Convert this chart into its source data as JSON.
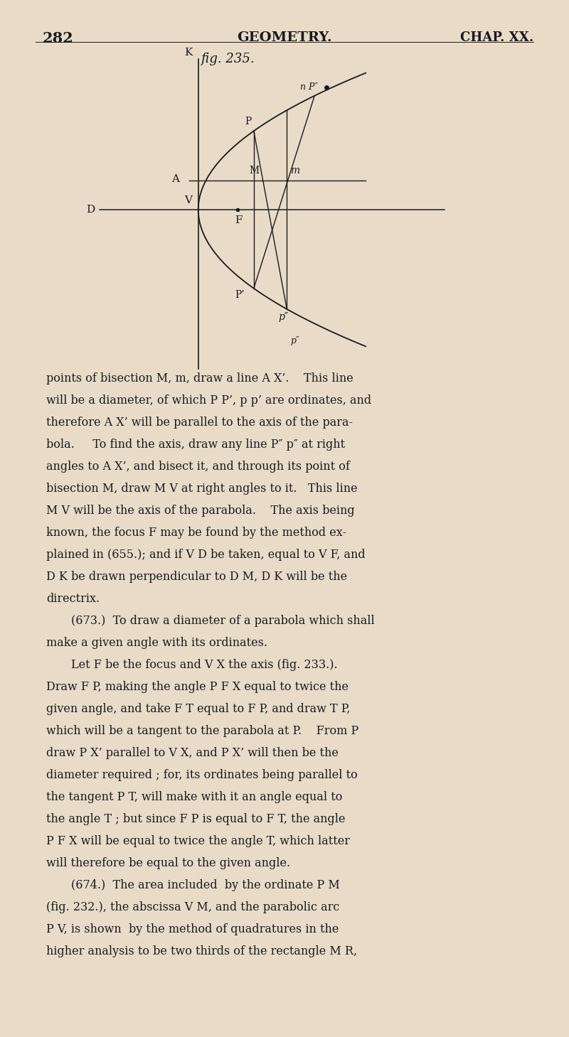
{
  "bg_color": "#e8dcc8",
  "text_color": "#1a1a1a",
  "line_color": "#1a1a1a",
  "page_number": "282",
  "header_center": "GEOMETRY.",
  "header_right": "CHAP. XX.",
  "fig_label": "fig. 235.",
  "body_text": [
    "points of bisection M, m, draw a line A X’.    This line",
    "will be a diameter, of which P P’, p p’ are ordinates, and",
    "therefore A X’ will be parallel to the axis of the para-",
    "bola.     To find the axis, draw any line P″ p″ at right",
    "angles to A X’, and bisect it, and through its point of",
    "bisection M, draw M V at right angles to it.   This line",
    "M V will be the axis of the parabola.    The axis being",
    "known, the focus F may be found by the method ex-",
    "plained in (655.); and if V D be taken, equal to V F, and",
    "D K be drawn perpendicular to D M, D K will be the",
    "directrix.",
    "    (673.)  To draw a diameter of a parabola which shall",
    "make a given angle with its ordinates.",
    "    Let F be the focus and V X the axis (fig. 233.).",
    "Draw F P, making the angle P F X equal to twice the",
    "given angle, and take F T equal to F P, and draw T P,",
    "which will be a tangent to the parabola at P.    From P",
    "draw P X’ parallel to V X, and P X’ will then be the",
    "diameter required ; for, its ordinates being parallel to",
    "the tangent P T, will make with it an angle equal to",
    "the angle T ; but since F P is equal to F T, the angle",
    "P F X will be equal to twice the angle T, which latter",
    "will therefore be equal to the given angle.",
    "    (674.)  The area included  by the ordinate P M",
    "(fig. 232.), the abscissa V M, and the parabolic arc",
    "P V, is shown  by the method of quadratures in the",
    "higher analysis to be two thirds of the rectangle M R,"
  ],
  "parabola_a": 0.8,
  "y_diam": 0.7,
  "y_P": 1.9,
  "y_p": 2.4,
  "y_nPpp": 2.75,
  "dot_x": 2.6,
  "dot_y": 2.95,
  "dl": 175,
  "dr": 590,
  "db": 960,
  "dt": 1368,
  "x_data_min": -1.5,
  "x_data_max": 4.5,
  "y_data_min": -3.5,
  "y_data_max": 3.5
}
